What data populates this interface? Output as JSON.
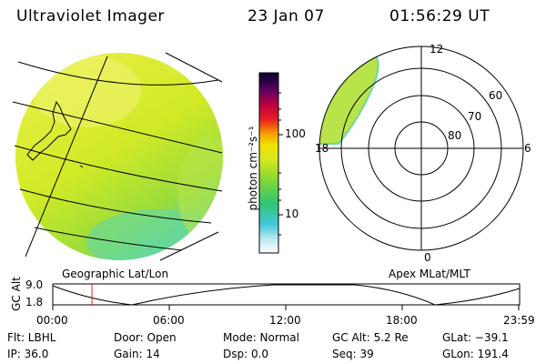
{
  "header": {
    "title": "Ultraviolet Imager",
    "date": "23 Jan 07",
    "time": "01:56:29 UT"
  },
  "colorbar": {
    "unit_label": "photon cm⁻²s⁻¹",
    "tick_100": "100",
    "tick_10": "10"
  },
  "polar": {
    "mlt_labels": {
      "top": "12",
      "right": "6",
      "bottom": "0",
      "left": "18"
    },
    "lat_labels": [
      "60",
      "70",
      "80"
    ]
  },
  "panels": {
    "left_caption": "Geographic Lat/Lon",
    "right_caption": "Apex MLat/MLT"
  },
  "altitude_plot": {
    "ylabel": "GC Alt",
    "ymax": "9.0",
    "ymin": "1.8",
    "x_ticks": [
      "00:00",
      "06:00",
      "12:00",
      "18:00",
      "23:59"
    ],
    "marker_time": "01:56"
  },
  "status": {
    "flt": "Flt: LBHL",
    "ip": "IP: 36.0",
    "door": "Door: Open",
    "gain": "Gain: 14",
    "mode": "Mode: Normal",
    "dsp": "Dsp:     0.0",
    "gc_alt": "GC Alt: 5.2 Re",
    "seq": "Seq: 39",
    "glat": "GLat: −39.1",
    "glon": "GLon: 191.4"
  },
  "colors": {
    "fill_main": "#d8ec2a",
    "fill_green": "#88d840",
    "fill_teal": "#5ad8a0",
    "marker": "#e02020"
  }
}
